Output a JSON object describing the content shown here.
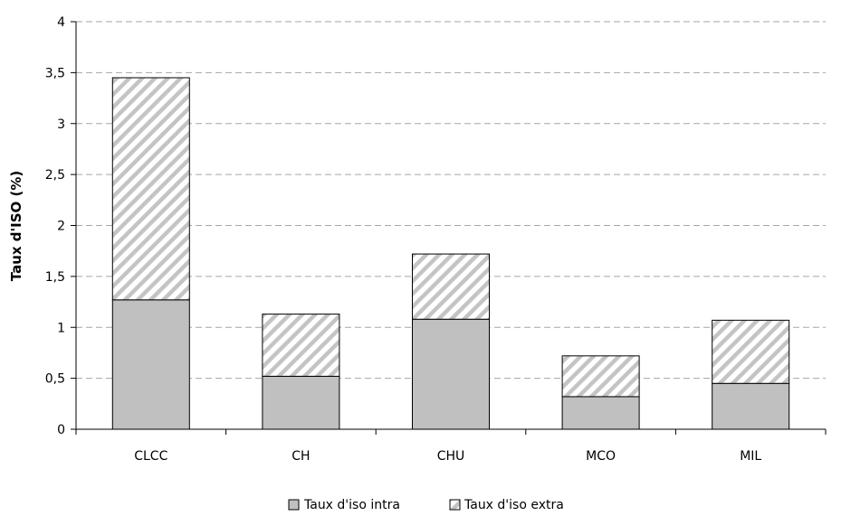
{
  "chart_data": {
    "type": "bar",
    "stacked": true,
    "categories": [
      "CLCC",
      "CH",
      "CHU",
      "MCO",
      "MIL"
    ],
    "series": [
      {
        "name": "Taux d'iso intra",
        "values": [
          1.27,
          0.52,
          1.08,
          0.32,
          0.45
        ],
        "color": "#c0c0c0",
        "pattern": "solid"
      },
      {
        "name": "Taux d'iso extra",
        "values": [
          2.18,
          0.61,
          0.64,
          0.4,
          0.62
        ],
        "color": "#c0c0c0",
        "pattern": "diagonal-hatch"
      }
    ],
    "ylabel": "Taux d'ISO (%)",
    "xlabel": "",
    "ylim": [
      0,
      4
    ],
    "yticks": [
      "0",
      "0,5",
      "1",
      "1,5",
      "2",
      "2,5",
      "3",
      "3,5",
      "4"
    ],
    "grid": "horizontal-dashed",
    "legend": "bottom"
  }
}
